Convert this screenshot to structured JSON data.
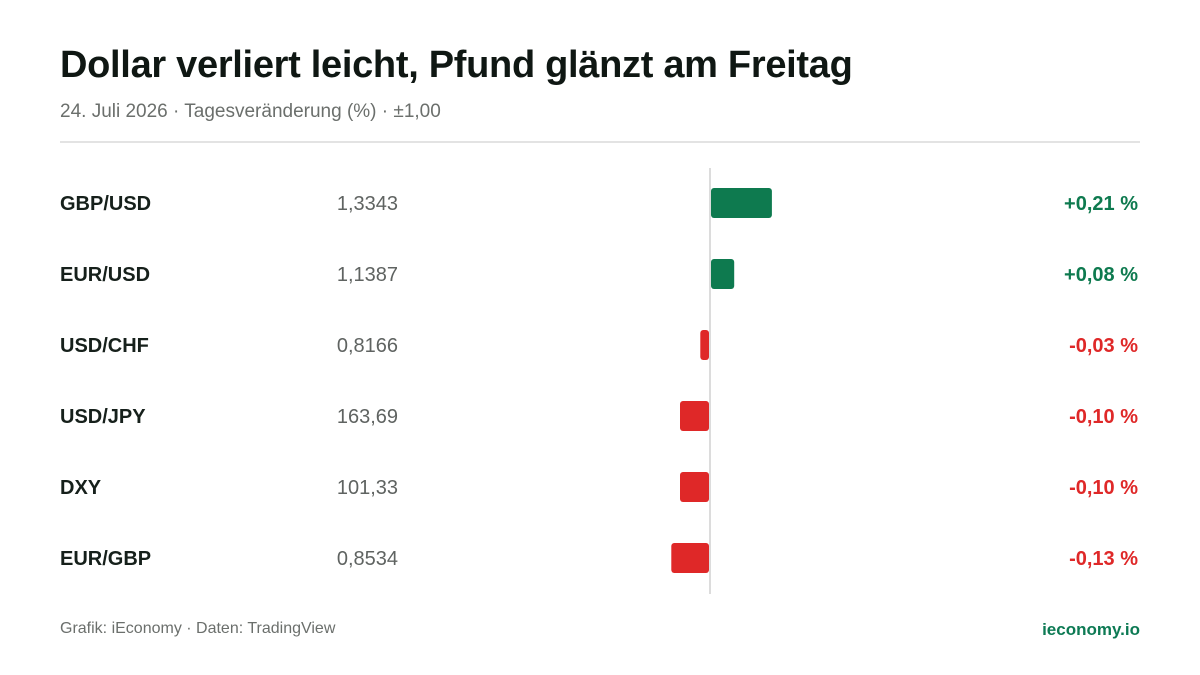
{
  "header": {
    "title": "Dollar verliert leicht, Pfund glänzt am Freitag",
    "subtitle": "24. Juli 2026 · Tagesveränderung (%) · ±1,00"
  },
  "footer": {
    "source": "Grafik: iEconomy · Daten: TradingView",
    "brand": "ieconomy.io"
  },
  "colors": {
    "positive": "#0e7a4f",
    "negative": "#df2828",
    "label": "#16201b",
    "value": "#5f6361",
    "axis": "#dcdcdc"
  },
  "chart_data": {
    "type": "bar",
    "orientation": "horizontal",
    "categories": [
      "GBP/USD",
      "EUR/USD",
      "USD/CHF",
      "USD/JPY",
      "DXY",
      "EUR/GBP"
    ],
    "prices": [
      "1,3343",
      "1,1387",
      "0,8166",
      "163,69",
      "101,33",
      "0,8534"
    ],
    "values": [
      0.21,
      0.08,
      -0.03,
      -0.1,
      -0.1,
      -0.13
    ],
    "value_labels": [
      "+0,21 %",
      "+0,08 %",
      "-0,03 %",
      "-0,10 %",
      "-0,10 %",
      "-0,13 %"
    ],
    "xlim": [
      -1,
      1
    ],
    "zero_line": true
  }
}
